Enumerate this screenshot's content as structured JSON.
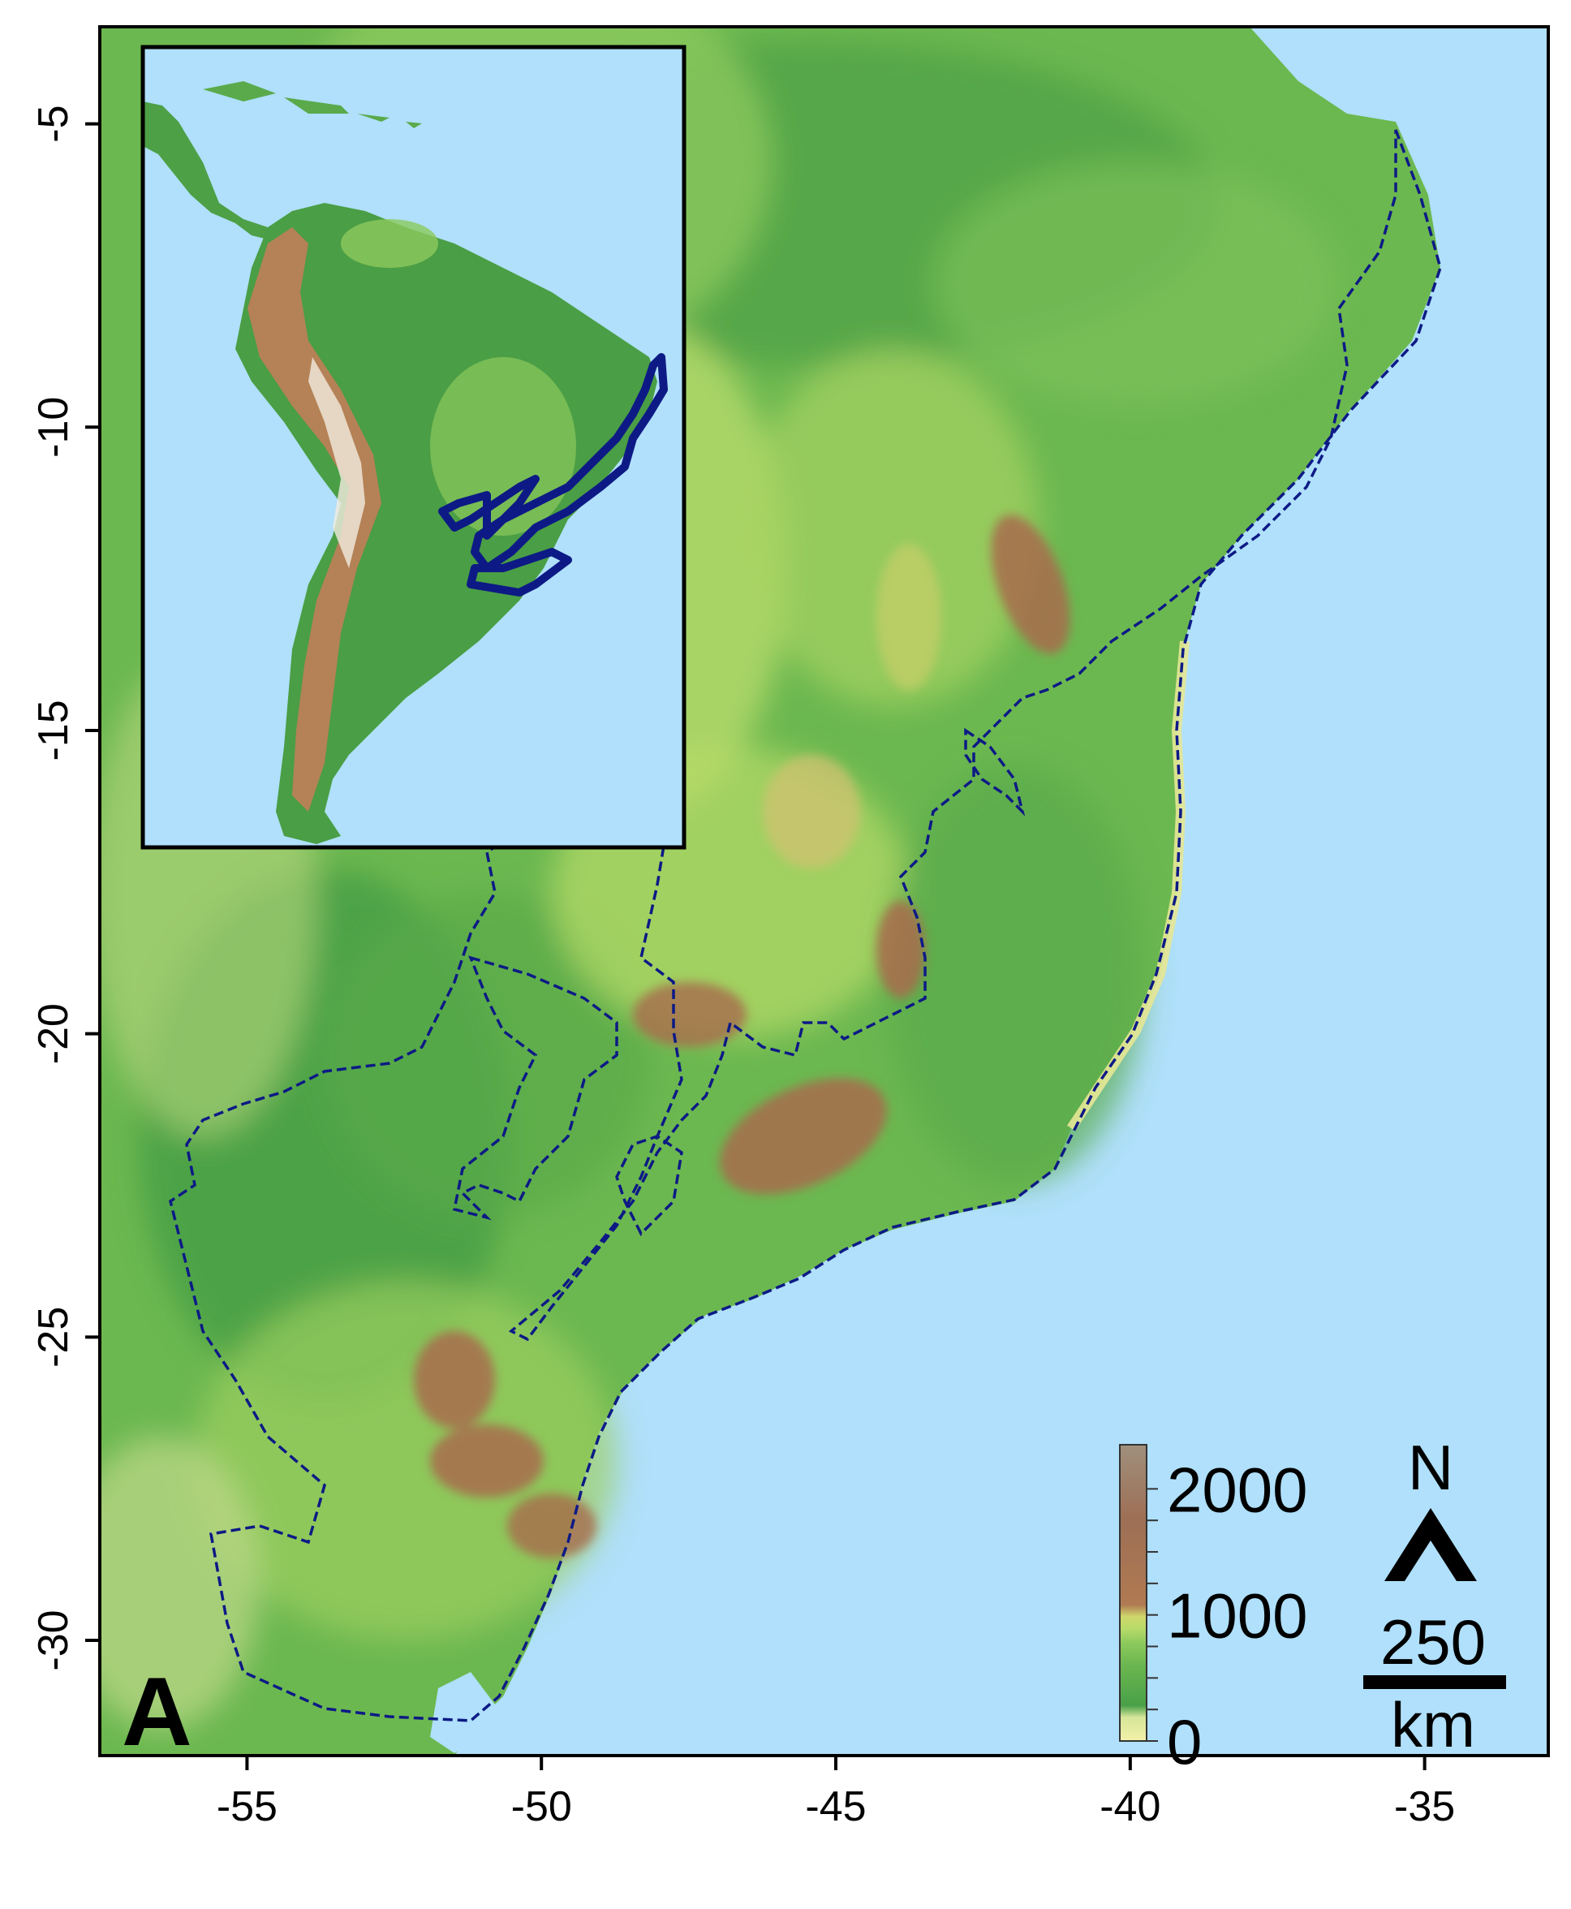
{
  "figure": {
    "panel_label": "A",
    "x_ticks": [
      "-55",
      "-50",
      "-45",
      "-40",
      "-35"
    ],
    "y_ticks": [
      "-5",
      "-10",
      "-15",
      "-20",
      "-25",
      "-30"
    ],
    "x_tick_values": [
      -55,
      -50,
      -45,
      -40,
      -35
    ],
    "y_tick_values": [
      -5,
      -10,
      -15,
      -20,
      -25,
      -30
    ],
    "x_range": [
      -57.5,
      -32.9
    ],
    "y_range": [
      -31.9,
      -3.4
    ]
  },
  "elevation_legend": {
    "labels": [
      "2000",
      "1000",
      "0"
    ],
    "values": [
      2000,
      1000,
      0
    ],
    "range": [
      0,
      2350
    ],
    "colors": [
      "#f3f0a9",
      "#d6e69a",
      "#49a048",
      "#6ab54f",
      "#8cc95c",
      "#b8db6a",
      "#cfd76c",
      "#b07a52",
      "#9d6f55",
      "#a0907c"
    ]
  },
  "north_arrow": {
    "label": "N"
  },
  "scale_bar": {
    "value": "250",
    "unit": "km"
  },
  "colors": {
    "ocean": "#b0e0fb",
    "boundary": "#0d1a85",
    "lowland": "#5aaa4a",
    "highland": "#a86b4c"
  }
}
